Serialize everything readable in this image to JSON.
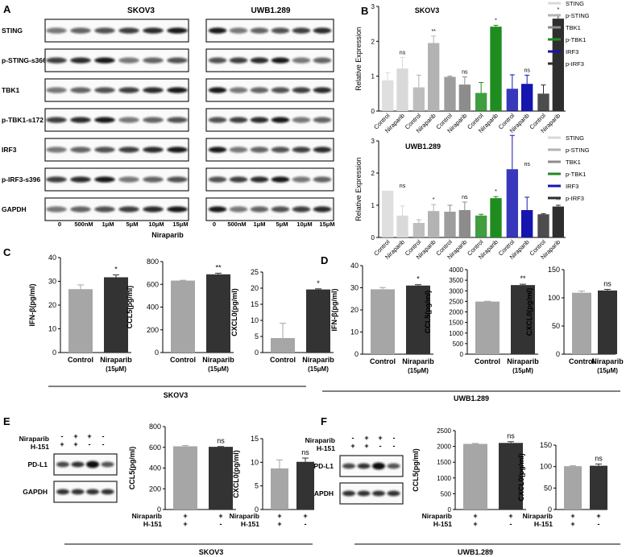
{
  "colors": {
    "control_bar": "#a6a6a6",
    "treated_bar": "#333333"
  },
  "panels": {
    "A": "A",
    "B": "B",
    "C": "C",
    "D": "D",
    "E": "E",
    "F": "F"
  },
  "western_A": {
    "cell_lines": [
      "SKOV3",
      "UWB1.289"
    ],
    "proteins": [
      "STING",
      "p-STING-s366",
      "TBK1",
      "p-TBK1-s172",
      "IRF3",
      "p-IRF3-s396",
      "GAPDH"
    ],
    "doses": [
      "0",
      "500nM",
      "1μM",
      "5μM",
      "10μM",
      "15μM"
    ],
    "drug": "Niraparib"
  },
  "western_E": {
    "plus": "+",
    "minus": "-",
    "row1": "Niraparib",
    "row2": "H-151",
    "r1": [
      "-",
      "+",
      "+",
      "-"
    ],
    "r2": [
      "+",
      "+",
      "-",
      "-"
    ],
    "bands": [
      "PD-L1",
      "GAPDH"
    ]
  },
  "western_F": {
    "row1": "Niraparib",
    "row2": "H-151",
    "r1": [
      "-",
      "+",
      "+",
      "-"
    ],
    "r2": [
      "+",
      "+",
      "-",
      "-"
    ],
    "bands": [
      "PD-L1",
      "GAPDH"
    ]
  },
  "footer_C": "SKOV3",
  "footer_D": "UWB1.289",
  "footer_E": "SKOV3",
  "footer_F": "UWB1.289",
  "chart_data": [
    {
      "id": "B_skov3",
      "type": "bar",
      "title": "SKOV3",
      "ylabel": "Relative Expression",
      "ylim": [
        0,
        3
      ],
      "yticks": [
        0,
        1,
        2,
        3
      ],
      "pairs": [
        "STING",
        "p-STING",
        "TBK1",
        "p-TBK1",
        "IRF3",
        "p-IRF3"
      ],
      "colors": [
        "#d9d9d9",
        "#b3b3b3",
        "#8c8c8c",
        "#1e8c1e",
        "#1515b0",
        "#2e2e2e"
      ],
      "categories": [
        "Control",
        "Niraparib"
      ],
      "values": [
        [
          0.88,
          1.22
        ],
        [
          0.68,
          1.95
        ],
        [
          0.98,
          0.76
        ],
        [
          0.52,
          2.42
        ],
        [
          0.64,
          0.78
        ],
        [
          0.5,
          2.65
        ]
      ],
      "errors": [
        [
          0.22,
          0.32
        ],
        [
          0.35,
          0.2
        ],
        [
          0.02,
          0.22
        ],
        [
          0.3,
          0.04
        ],
        [
          0.4,
          0.25
        ],
        [
          0.25,
          0.12
        ]
      ],
      "significance": [
        "ns",
        "**",
        "ns",
        "*",
        "ns",
        "*"
      ],
      "legend": [
        "STING",
        "p-STING",
        "TBK1",
        "p-TBK1",
        "IRF3",
        "p-IRF3"
      ]
    },
    {
      "id": "B_uwb",
      "type": "bar",
      "title": "UWB1.289",
      "ylabel": "Relative Expression",
      "ylim": [
        0,
        3
      ],
      "yticks": [
        0,
        1,
        2,
        3
      ],
      "pairs": [
        "STING",
        "p-STING",
        "TBK1",
        "p-TBK1",
        "IRF3",
        "p-IRF3"
      ],
      "colors": [
        "#d9d9d9",
        "#b3b3b3",
        "#8c8c8c",
        "#1e8c1e",
        "#1515b0",
        "#2e2e2e"
      ],
      "categories": [
        "Control",
        "Niraparib"
      ],
      "values": [
        [
          1.45,
          0.68
        ],
        [
          0.45,
          0.82
        ],
        [
          0.8,
          0.85
        ],
        [
          0.68,
          1.22
        ],
        [
          2.12,
          0.85
        ],
        [
          0.72,
          0.96
        ]
      ],
      "errors": [
        [
          0.0,
          0.3
        ],
        [
          0.1,
          0.2
        ],
        [
          0.2,
          0.25
        ],
        [
          0.04,
          0.05
        ],
        [
          1.05,
          0.4
        ],
        [
          0.02,
          0.04
        ]
      ],
      "significance": [
        "ns",
        "*",
        "ns",
        "*",
        "ns",
        "**"
      ],
      "legend": [
        "STING",
        "p-STING",
        "TBK1",
        "p-TBK1",
        "IRF3",
        "p-IRF3"
      ]
    },
    {
      "id": "C1",
      "type": "bar",
      "ylabel": "IFN-β(pg/ml)",
      "ylim": [
        0,
        40
      ],
      "yticks": [
        0,
        10,
        20,
        30,
        40
      ],
      "categories": [
        "Control",
        "Niraparib"
      ],
      "sublabel": "(15μM)",
      "values": [
        26.7,
        31.7
      ],
      "errors": [
        1.8,
        1.0
      ],
      "significance": "*"
    },
    {
      "id": "C2",
      "type": "bar",
      "ylabel": "CCL5(pg/ml)",
      "ylim": [
        0,
        800
      ],
      "yticks": [
        0,
        200,
        400,
        600,
        800
      ],
      "categories": [
        "Control",
        "Niraparib"
      ],
      "sublabel": "(15μM)",
      "values": [
        633,
        688
      ],
      "errors": [
        3,
        10
      ],
      "significance": "**"
    },
    {
      "id": "C3",
      "type": "bar",
      "ylabel": "CXCL0(pg/ml)",
      "ylim": [
        0,
        25
      ],
      "yticks": [
        0,
        5,
        10,
        15,
        20,
        25
      ],
      "categories": [
        "Control",
        "Niraparib"
      ],
      "sublabel": "(15μM)",
      "values": [
        4.5,
        19.6
      ],
      "errors": [
        4.6,
        0.2
      ],
      "significance": "*"
    },
    {
      "id": "D1",
      "type": "bar",
      "ylabel": "IFN-β(pg/ml)",
      "ylim": [
        0,
        40
      ],
      "yticks": [
        0,
        10,
        20,
        30,
        40
      ],
      "categories": [
        "Control",
        "Niraparib"
      ],
      "sublabel": "(15μM)",
      "values": [
        29.3,
        31.0
      ],
      "errors": [
        0.8,
        0.4
      ],
      "significance": "*"
    },
    {
      "id": "D2",
      "type": "bar",
      "ylabel": "CCL5(pg/ml)",
      "ylim": [
        0,
        4000
      ],
      "yticks": [
        0,
        500,
        1000,
        1500,
        2000,
        2500,
        3000,
        3500,
        4000
      ],
      "categories": [
        "Control",
        "Niraparib"
      ],
      "sublabel": "(15μM)",
      "values": [
        2490,
        3270
      ],
      "errors": [
        15,
        40
      ],
      "significance": "**"
    },
    {
      "id": "D3",
      "type": "bar",
      "ylabel": "CXCL0(pg/ml)",
      "ylim": [
        0,
        150
      ],
      "yticks": [
        0,
        50,
        100,
        150
      ],
      "categories": [
        "Control",
        "Niraparib"
      ],
      "sublabel": "(15μM)",
      "values": [
        109,
        113
      ],
      "errors": [
        3,
        2
      ],
      "significance": "ns"
    },
    {
      "id": "E1",
      "type": "bar",
      "ylabel": "CCL5(pg/ml)",
      "ylim": [
        0,
        800
      ],
      "yticks": [
        0,
        200,
        400,
        600,
        800
      ],
      "values": [
        610,
        605
      ],
      "errors": [
        8,
        3
      ],
      "significance": "ns",
      "row_labels": [
        "Niraparib",
        "H-151"
      ],
      "row1": [
        "+",
        "+"
      ],
      "row2": [
        "+",
        "-"
      ]
    },
    {
      "id": "E2",
      "type": "bar",
      "ylabel": "CXCL0(pg/ml)",
      "ylim": [
        0,
        15
      ],
      "yticks": [
        0,
        5,
        10,
        15
      ],
      "values": [
        8.7,
        10.1
      ],
      "errors": [
        1.8,
        0.8
      ],
      "significance": "ns",
      "row_labels": [
        "Niraparib",
        "H-151"
      ],
      "row1": [
        "+",
        "+"
      ],
      "row2": [
        "+",
        "-"
      ]
    },
    {
      "id": "F1",
      "type": "bar",
      "ylabel": "CCL5(pg/ml)",
      "ylim": [
        0,
        2500
      ],
      "yticks": [
        0,
        500,
        1000,
        1500,
        2000,
        2500
      ],
      "values": [
        2080,
        2110
      ],
      "errors": [
        15,
        40
      ],
      "significance": "ns",
      "row_labels": [
        "Niraparib",
        "H-151"
      ],
      "row1": [
        "+",
        "+"
      ],
      "row2": [
        "+",
        "-"
      ]
    },
    {
      "id": "F2",
      "type": "bar",
      "ylabel": "CXCL0(pg/ml)",
      "ylim": [
        0,
        150
      ],
      "yticks": [
        0,
        50,
        100,
        150
      ],
      "values": [
        101,
        102
      ],
      "errors": [
        1,
        4
      ],
      "significance": "ns",
      "row_labels": [
        "Niraparib",
        "H-151"
      ],
      "row1": [
        "+",
        "+"
      ],
      "row2": [
        "+",
        "-"
      ]
    }
  ]
}
